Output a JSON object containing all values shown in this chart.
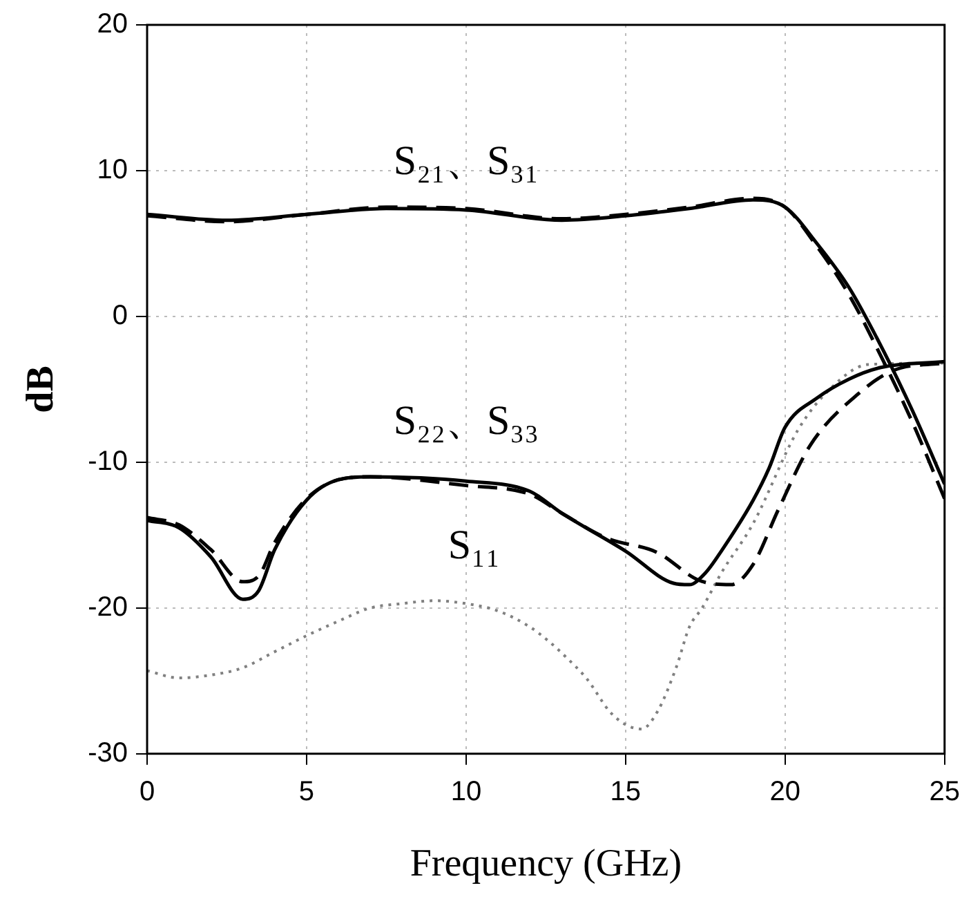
{
  "chart_data": {
    "type": "line",
    "xlabel": "Frequency (GHz)",
    "ylabel": "dB",
    "xlim": [
      0,
      25
    ],
    "xticks": [
      0,
      5,
      10,
      15,
      20,
      25
    ],
    "ylim": [
      -30,
      20
    ],
    "yticks": [
      -30,
      -20,
      -10,
      0,
      10,
      20
    ],
    "grid": true,
    "legend": false,
    "marker": "none",
    "annotations": [
      "S₂₁、S₃₁",
      "S₂₂、S₃₃",
      "S₁₁"
    ],
    "series": [
      {
        "color": "#000000",
        "line_style": "solid",
        "x": [
          0,
          2.5,
          5,
          7.5,
          10,
          13,
          15,
          17,
          19,
          20,
          21,
          22,
          23,
          24,
          25
        ],
        "values": [
          7,
          6.6,
          7,
          7.4,
          7.3,
          6.6,
          6.9,
          7.4,
          8,
          7.5,
          5,
          2,
          -2,
          -6.5,
          -11.5
        ]
      },
      {
        "color": "#000000",
        "line_style": "dashed",
        "x": [
          0,
          2.5,
          5,
          7.5,
          10,
          13,
          15,
          17,
          19,
          20,
          21,
          22,
          23,
          24,
          25
        ],
        "values": [
          6.9,
          6.5,
          7,
          7.5,
          7.4,
          6.7,
          7,
          7.5,
          8.1,
          7.5,
          4.8,
          1.5,
          -2.7,
          -7.3,
          -12.5
        ]
      },
      {
        "color": "#000000",
        "line_style": "solid",
        "x": [
          0,
          1,
          2,
          3,
          3.5,
          4,
          5,
          6,
          7,
          10,
          12,
          13,
          15,
          16.5,
          17,
          17.5,
          18,
          19,
          19.5,
          20,
          21,
          22,
          23,
          25
        ],
        "values": [
          -14,
          -14.5,
          -16.5,
          -19.4,
          -18.8,
          -16,
          -12.6,
          -11.2,
          -11,
          -11.3,
          -12,
          -13.5,
          -16.1,
          -18.3,
          -18.4,
          -17.6,
          -16.1,
          -12.6,
          -10.4,
          -7.6,
          -5.6,
          -4.3,
          -3.5,
          -3.1
        ]
      },
      {
        "color": "#000000",
        "line_style": "dashed",
        "x": [
          0,
          1,
          2,
          3,
          3.5,
          4,
          5,
          6,
          7,
          10,
          12,
          13,
          14.4,
          16,
          17.3,
          18.3,
          19,
          19.8,
          20.8,
          22.3,
          23.4,
          25
        ],
        "values": [
          -13.8,
          -14.3,
          -16,
          -18.2,
          -17.8,
          -15.5,
          -12.5,
          -11.2,
          -11,
          -11.6,
          -12.2,
          -13.5,
          -15.2,
          -16.2,
          -18.1,
          -18.4,
          -17,
          -13.2,
          -8.8,
          -5.3,
          -3.7,
          -3.2
        ]
      },
      {
        "color": "#808080",
        "line_style": "dotted",
        "x": [
          0,
          1,
          2,
          3,
          4,
          5,
          6,
          7,
          8,
          9,
          10,
          11,
          12,
          12.6,
          13.1,
          13.8,
          14.5,
          15,
          15.5,
          16,
          16.6,
          17,
          17.4,
          18,
          19,
          20.4,
          21.4,
          22.6,
          25
        ],
        "values": [
          -24.3,
          -24.8,
          -24.6,
          -24.1,
          -23,
          -21.9,
          -20.9,
          -20,
          -19.7,
          -19.5,
          -19.7,
          -20.2,
          -21.3,
          -22.3,
          -23.3,
          -24.9,
          -27.1,
          -28,
          -28.3,
          -27.1,
          -24,
          -21.3,
          -20,
          -17.6,
          -14.2,
          -7.8,
          -5,
          -3.3,
          -3.2
        ]
      }
    ]
  }
}
